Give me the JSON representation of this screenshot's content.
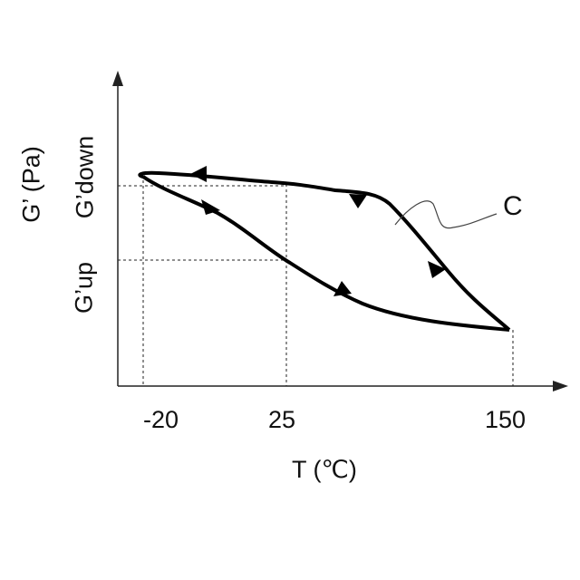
{
  "axes": {
    "x_label": "T (℃)",
    "y_label": "G’ (Pa)",
    "x_ticks": [
      "-20",
      "25",
      "150"
    ],
    "y_ticks": [
      "G’up",
      "G’down"
    ]
  },
  "curve_label": "C",
  "colors": {
    "line": "#000000",
    "text": "#111111"
  }
}
